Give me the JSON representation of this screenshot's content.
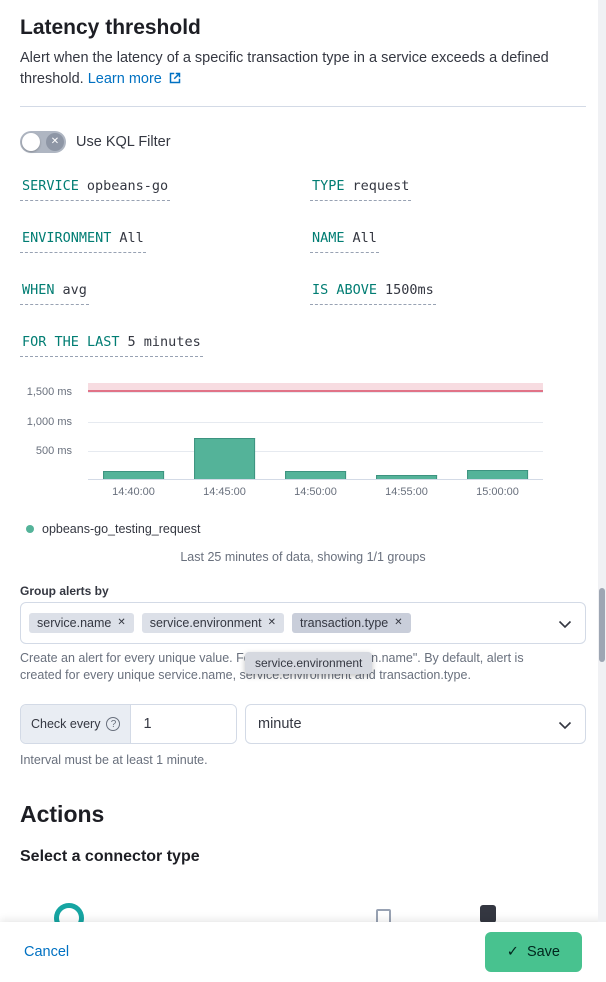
{
  "colors": {
    "primary_blue": "#0071C2",
    "expression_teal": "#017D73",
    "bar_green": "#54B399",
    "bar_border_green": "#3D9380",
    "threshold_line": "#E17387",
    "threshold_band": "rgba(224,115,135,0.25)",
    "save_green": "#48C28F",
    "pill_gray": "#DCE0E8",
    "pill_gray_active": "#C9CEDA",
    "tooltip_gray": "#D6D9E0"
  },
  "icons": {
    "toggle_off": "✕",
    "remove": "✕",
    "check": "✓",
    "help": "?"
  },
  "header": {
    "title": "Latency threshold",
    "description": "Alert when the latency of a specific transaction type in a service exceeds a defined threshold.",
    "learn_more_label": "Learn more"
  },
  "kql_toggle": {
    "label": "Use KQL Filter",
    "state": "off"
  },
  "expressions": [
    {
      "label": "SERVICE",
      "value": "opbeans-go"
    },
    {
      "label": "TYPE",
      "value": "request"
    },
    {
      "label": "ENVIRONMENT",
      "value": "All"
    },
    {
      "label": "NAME",
      "value": "All"
    },
    {
      "label": "WHEN",
      "value": "avg"
    },
    {
      "label": "IS ABOVE",
      "value": "1500ms"
    },
    {
      "label": "FOR THE LAST",
      "value": "5 minutes"
    }
  ],
  "chart_data": {
    "type": "bar",
    "title": "",
    "categories": [
      "14:40:00",
      "14:45:00",
      "14:50:00",
      "14:55:00",
      "15:00:00"
    ],
    "series": [
      {
        "name": "opbeans-go_testing_request",
        "values": [
          130,
          710,
          130,
          70,
          150
        ]
      }
    ],
    "xlabel": "",
    "ylabel": "ms",
    "ylim": [
      0,
      1660
    ],
    "yticks": [
      {
        "value": 500,
        "label": "500 ms"
      },
      {
        "value": 1000,
        "label": "1,000 ms"
      },
      {
        "value": 1500,
        "label": "1,500 ms"
      }
    ],
    "threshold": 1500,
    "legend_position": "bottom",
    "grid": true
  },
  "chart_summary": "Last 25 minutes of data, showing 1/1 groups",
  "group_by": {
    "label": "Group alerts by",
    "tags": [
      "service.name",
      "service.environment",
      "transaction.type"
    ],
    "drag_tooltip": "service.environment",
    "help": "Create an alert for every unique value. For example, \"transaction.name\". By default, alert is created for every unique service.name, service.environment and transaction.type."
  },
  "interval": {
    "prepend_label": "Check every",
    "value": "1",
    "unit": "minute",
    "help": "Interval must be at least 1 minute."
  },
  "actions": {
    "title": "Actions",
    "subtitle": "Select a connector type"
  },
  "footer": {
    "cancel_label": "Cancel",
    "save_label": "Save"
  }
}
